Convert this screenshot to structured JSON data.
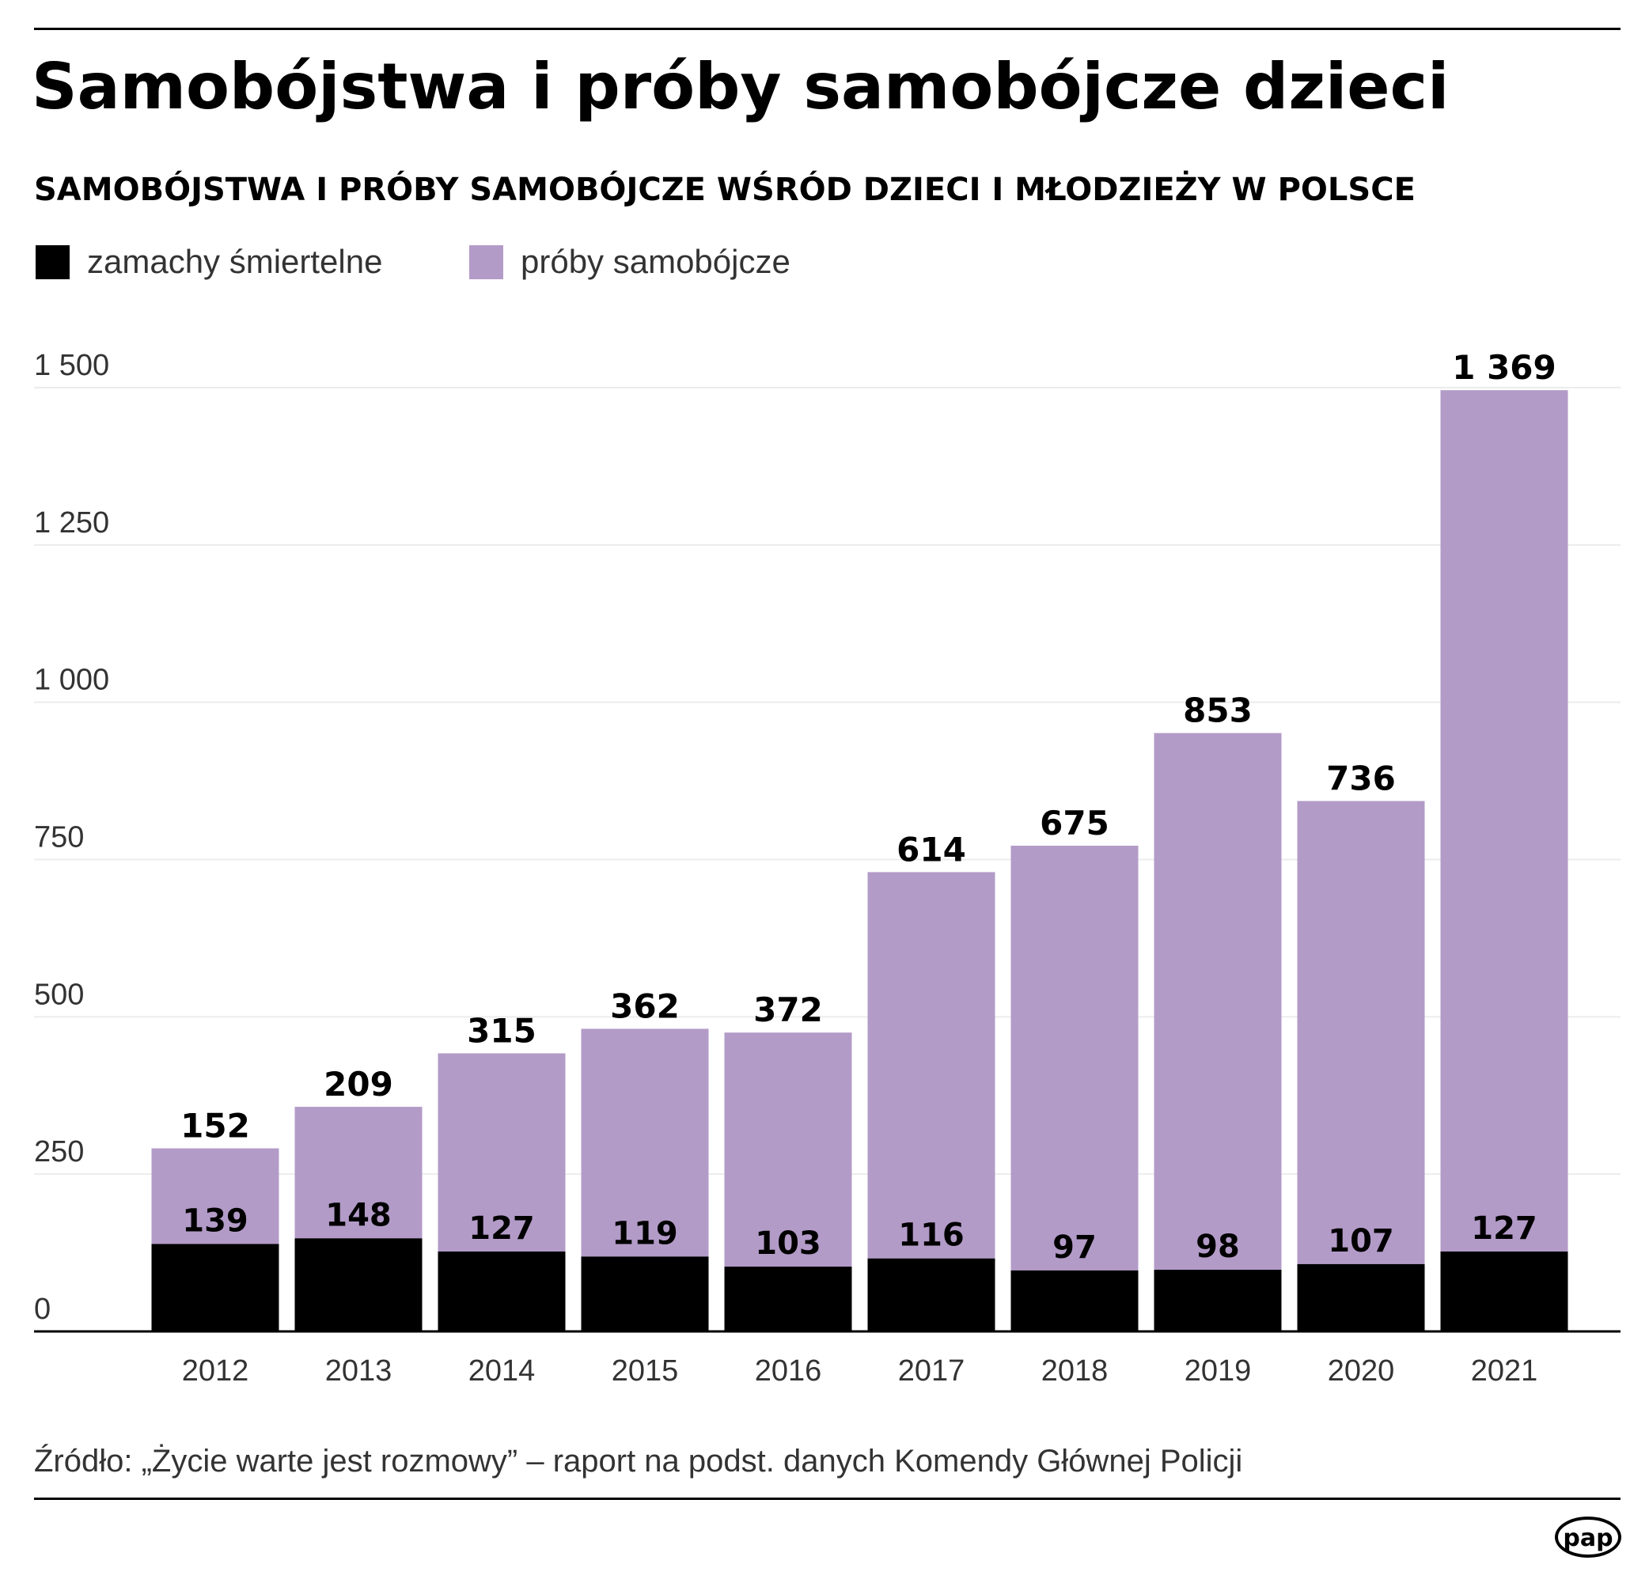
{
  "title": "Samobójstwa i próby samobójcze dzieci",
  "subtitle": "SAMOBÓJSTWA I PRÓBY SAMOBÓJCZE WŚRÓD DZIECI I MŁODZIEŻY W POLSCE",
  "legend": {
    "deaths": "zamachy śmiertelne",
    "attempts": "próby samobójcze"
  },
  "colors": {
    "deaths": "#000000",
    "attempts": "#b39bc8",
    "grid": "#ececec",
    "axis_text": "#333333",
    "label_text": "#000000"
  },
  "source": "Źródło: „Życie warte jest rozmowy” – raport na podst. danych Komendy Głównej Policji",
  "logo_text": "pap",
  "chart_data": {
    "type": "bar",
    "stacked": true,
    "categories": [
      "2012",
      "2013",
      "2014",
      "2015",
      "2016",
      "2017",
      "2018",
      "2019",
      "2020",
      "2021"
    ],
    "series": [
      {
        "name": "zamachy śmiertelne",
        "values": [
          139,
          148,
          127,
          119,
          103,
          116,
          97,
          98,
          107,
          127
        ]
      },
      {
        "name": "próby samobójcze",
        "values": [
          152,
          209,
          315,
          362,
          372,
          614,
          675,
          853,
          736,
          1369
        ]
      }
    ],
    "yticks": [
      "0",
      "250",
      "500",
      "750",
      "1 000",
      "1 250",
      "1 500"
    ],
    "ytick_values": [
      0,
      250,
      500,
      750,
      1000,
      1250,
      1500
    ],
    "ylim": [
      0,
      1500
    ],
    "value_labels": {
      "deaths": [
        "139",
        "148",
        "127",
        "119",
        "103",
        "116",
        "97",
        "98",
        "107",
        "127"
      ],
      "attempts": [
        "152",
        "209",
        "315",
        "362",
        "372",
        "614",
        "675",
        "853",
        "736",
        "1 369"
      ]
    },
    "grid": true,
    "legend_position": "top-left"
  }
}
